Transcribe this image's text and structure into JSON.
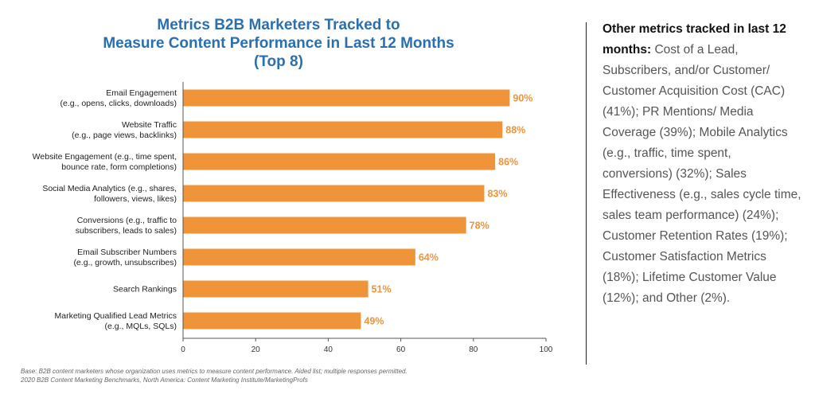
{
  "chart_data": {
    "type": "bar",
    "orientation": "horizontal",
    "title_lines": [
      "Metrics B2B Marketers Tracked to",
      "Measure Content Performance in Last 12 Months",
      "(Top 8)"
    ],
    "categories": [
      [
        "Email Engagement",
        "(e.g., opens, clicks, downloads)"
      ],
      [
        "Website Traffic",
        "(e.g., page views, backlinks)"
      ],
      [
        "Website Engagement (e.g., time spent,",
        "bounce rate, form completions)"
      ],
      [
        "Social Media Analytics (e.g., shares,",
        "followers, views, likes)"
      ],
      [
        "Conversions (e.g., traffic to",
        "subscribers, leads to sales)"
      ],
      [
        "Email Subscriber Numbers",
        "(e.g., growth, unsubscribes)"
      ],
      [
        "Search Rankings"
      ],
      [
        "Marketing Qualified Lead Metrics",
        "(e.g., MQLs, SQLs)"
      ]
    ],
    "values": [
      90,
      88,
      86,
      83,
      78,
      64,
      51,
      49
    ],
    "value_labels": [
      "90%",
      "88%",
      "86%",
      "83%",
      "78%",
      "64%",
      "51%",
      "49%"
    ],
    "xlim": [
      0,
      100
    ],
    "xticks": [
      0,
      20,
      40,
      60,
      80,
      100
    ],
    "bar_color": "#f0943a",
    "label_color": "#f0943a"
  },
  "footnote": {
    "line1": "Base: B2B content marketers whose organization uses metrics to measure content performance. Aided list; multiple responses permitted.",
    "line2": "2020 B2B Content Marketing Benchmarks, North America: Content Marketing Institute/MarketingProfs"
  },
  "sidebar": {
    "heading": "Other metrics tracked in last 12 months:",
    "body": " Cost of a Lead, Subscribers, and/or Customer/ Customer Acquisition Cost (CAC) (41%); PR Mentions/ Media Coverage (39%); Mobile Analytics (e.g., traffic, time spent, conversions) (32%); Sales Effectiveness (e.g., sales cycle time, sales team performance) (24%); Customer Retention Rates (19%); Customer Satisfaction Metrics (18%); Lifetime Customer Value (12%); and Other (2%)."
  }
}
